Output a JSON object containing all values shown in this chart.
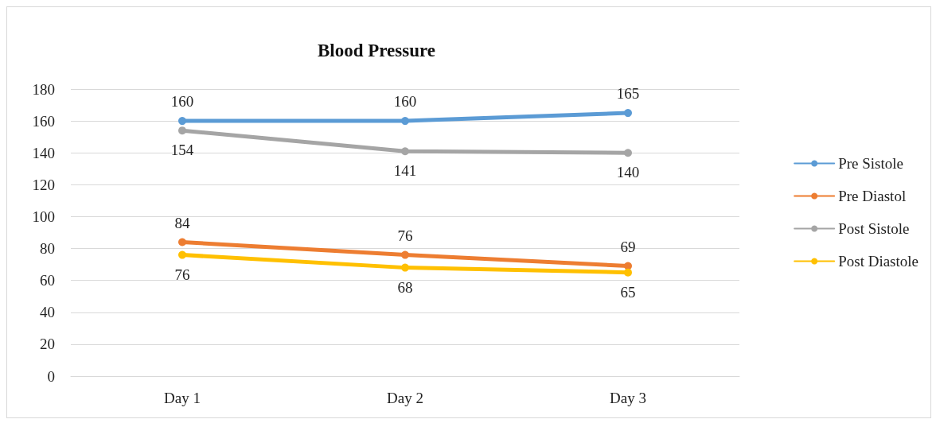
{
  "chart_data": {
    "type": "line",
    "title": "Blood Pressure",
    "categories": [
      "Day 1",
      "Day 2",
      "Day 3"
    ],
    "series": [
      {
        "name": "Pre Sistole",
        "color": "#5b9bd5",
        "values": [
          160,
          160,
          165
        ]
      },
      {
        "name": "Pre Diastol",
        "color": "#ed7d31",
        "values": [
          84,
          76,
          69
        ]
      },
      {
        "name": "Post Sistole",
        "color": "#a5a5a5",
        "values": [
          154,
          141,
          140
        ]
      },
      {
        "name": "Post Diastole",
        "color": "#ffc000",
        "values": [
          76,
          68,
          65
        ]
      }
    ],
    "ylim": [
      0,
      180
    ],
    "yticks": [
      0,
      20,
      40,
      60,
      80,
      100,
      120,
      140,
      160,
      180
    ],
    "grid": "y",
    "legend": "right",
    "marker": "circle",
    "line_style": "solid",
    "data_labels": true
  }
}
